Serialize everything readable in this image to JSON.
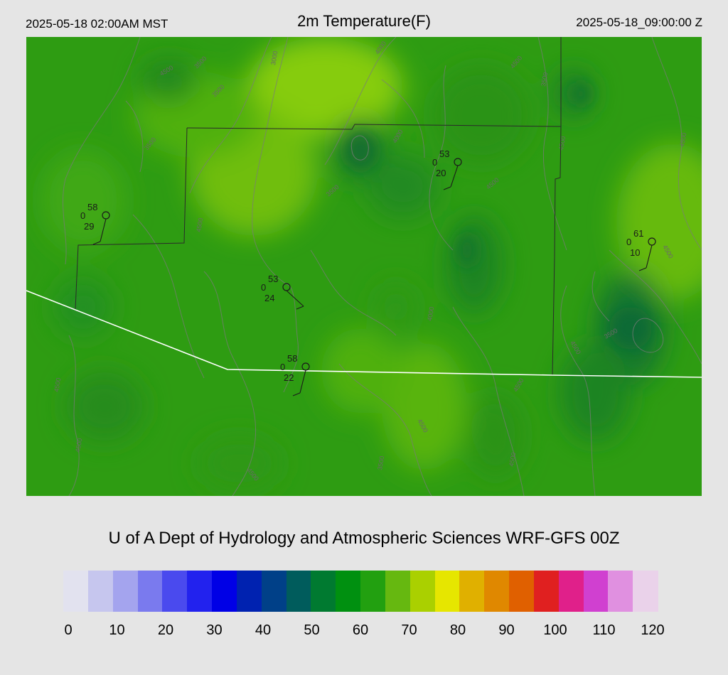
{
  "header": {
    "valid_local": "2025-05-18 02:00AM MST",
    "title": "2m Temperature(F)",
    "valid_utc": "2025-05-18_09:00:00 Z"
  },
  "credit": "U of A Dept of Hydrology and Atmospheric Sciences WRF-GFS 00Z",
  "colorbar": {
    "ticks": [
      "0",
      "10",
      "20",
      "30",
      "40",
      "50",
      "60",
      "70",
      "80",
      "90",
      "100",
      "110",
      "120"
    ],
    "range": [
      0,
      120
    ],
    "colors": [
      "#e2e2ef",
      "#c6c6ee",
      "#a4a4ee",
      "#7a7aee",
      "#4a4aee",
      "#2222ee",
      "#0000e6",
      "#0022b0",
      "#004088",
      "#005c5c",
      "#007a30",
      "#009010",
      "#22a010",
      "#66b810",
      "#aad000",
      "#e6e600",
      "#e0b000",
      "#e08800",
      "#e06000",
      "#e02020",
      "#e0208a",
      "#d040d0",
      "#e090e0",
      "#ead2ea"
    ]
  },
  "map": {
    "contour_labels": [
      "4000",
      "4500",
      "3000",
      "3500",
      "3500",
      "3500",
      "4000",
      "4500",
      "3500",
      "4500",
      "4500",
      "3500",
      "4500",
      "4500",
      "4500",
      "4000",
      "4500",
      "3500",
      "4500",
      "4500",
      "4500",
      "4500",
      "4500",
      "3500",
      "4500"
    ],
    "stations": [
      {
        "temp": "58",
        "zero": "0",
        "dew": "29"
      },
      {
        "temp": "53",
        "zero": "0",
        "dew": "20"
      },
      {
        "temp": "61",
        "zero": "0",
        "dew": "10"
      },
      {
        "temp": "53",
        "zero": "0",
        "dew": "24"
      },
      {
        "temp": "58",
        "zero": "0",
        "dew": "22"
      }
    ]
  }
}
